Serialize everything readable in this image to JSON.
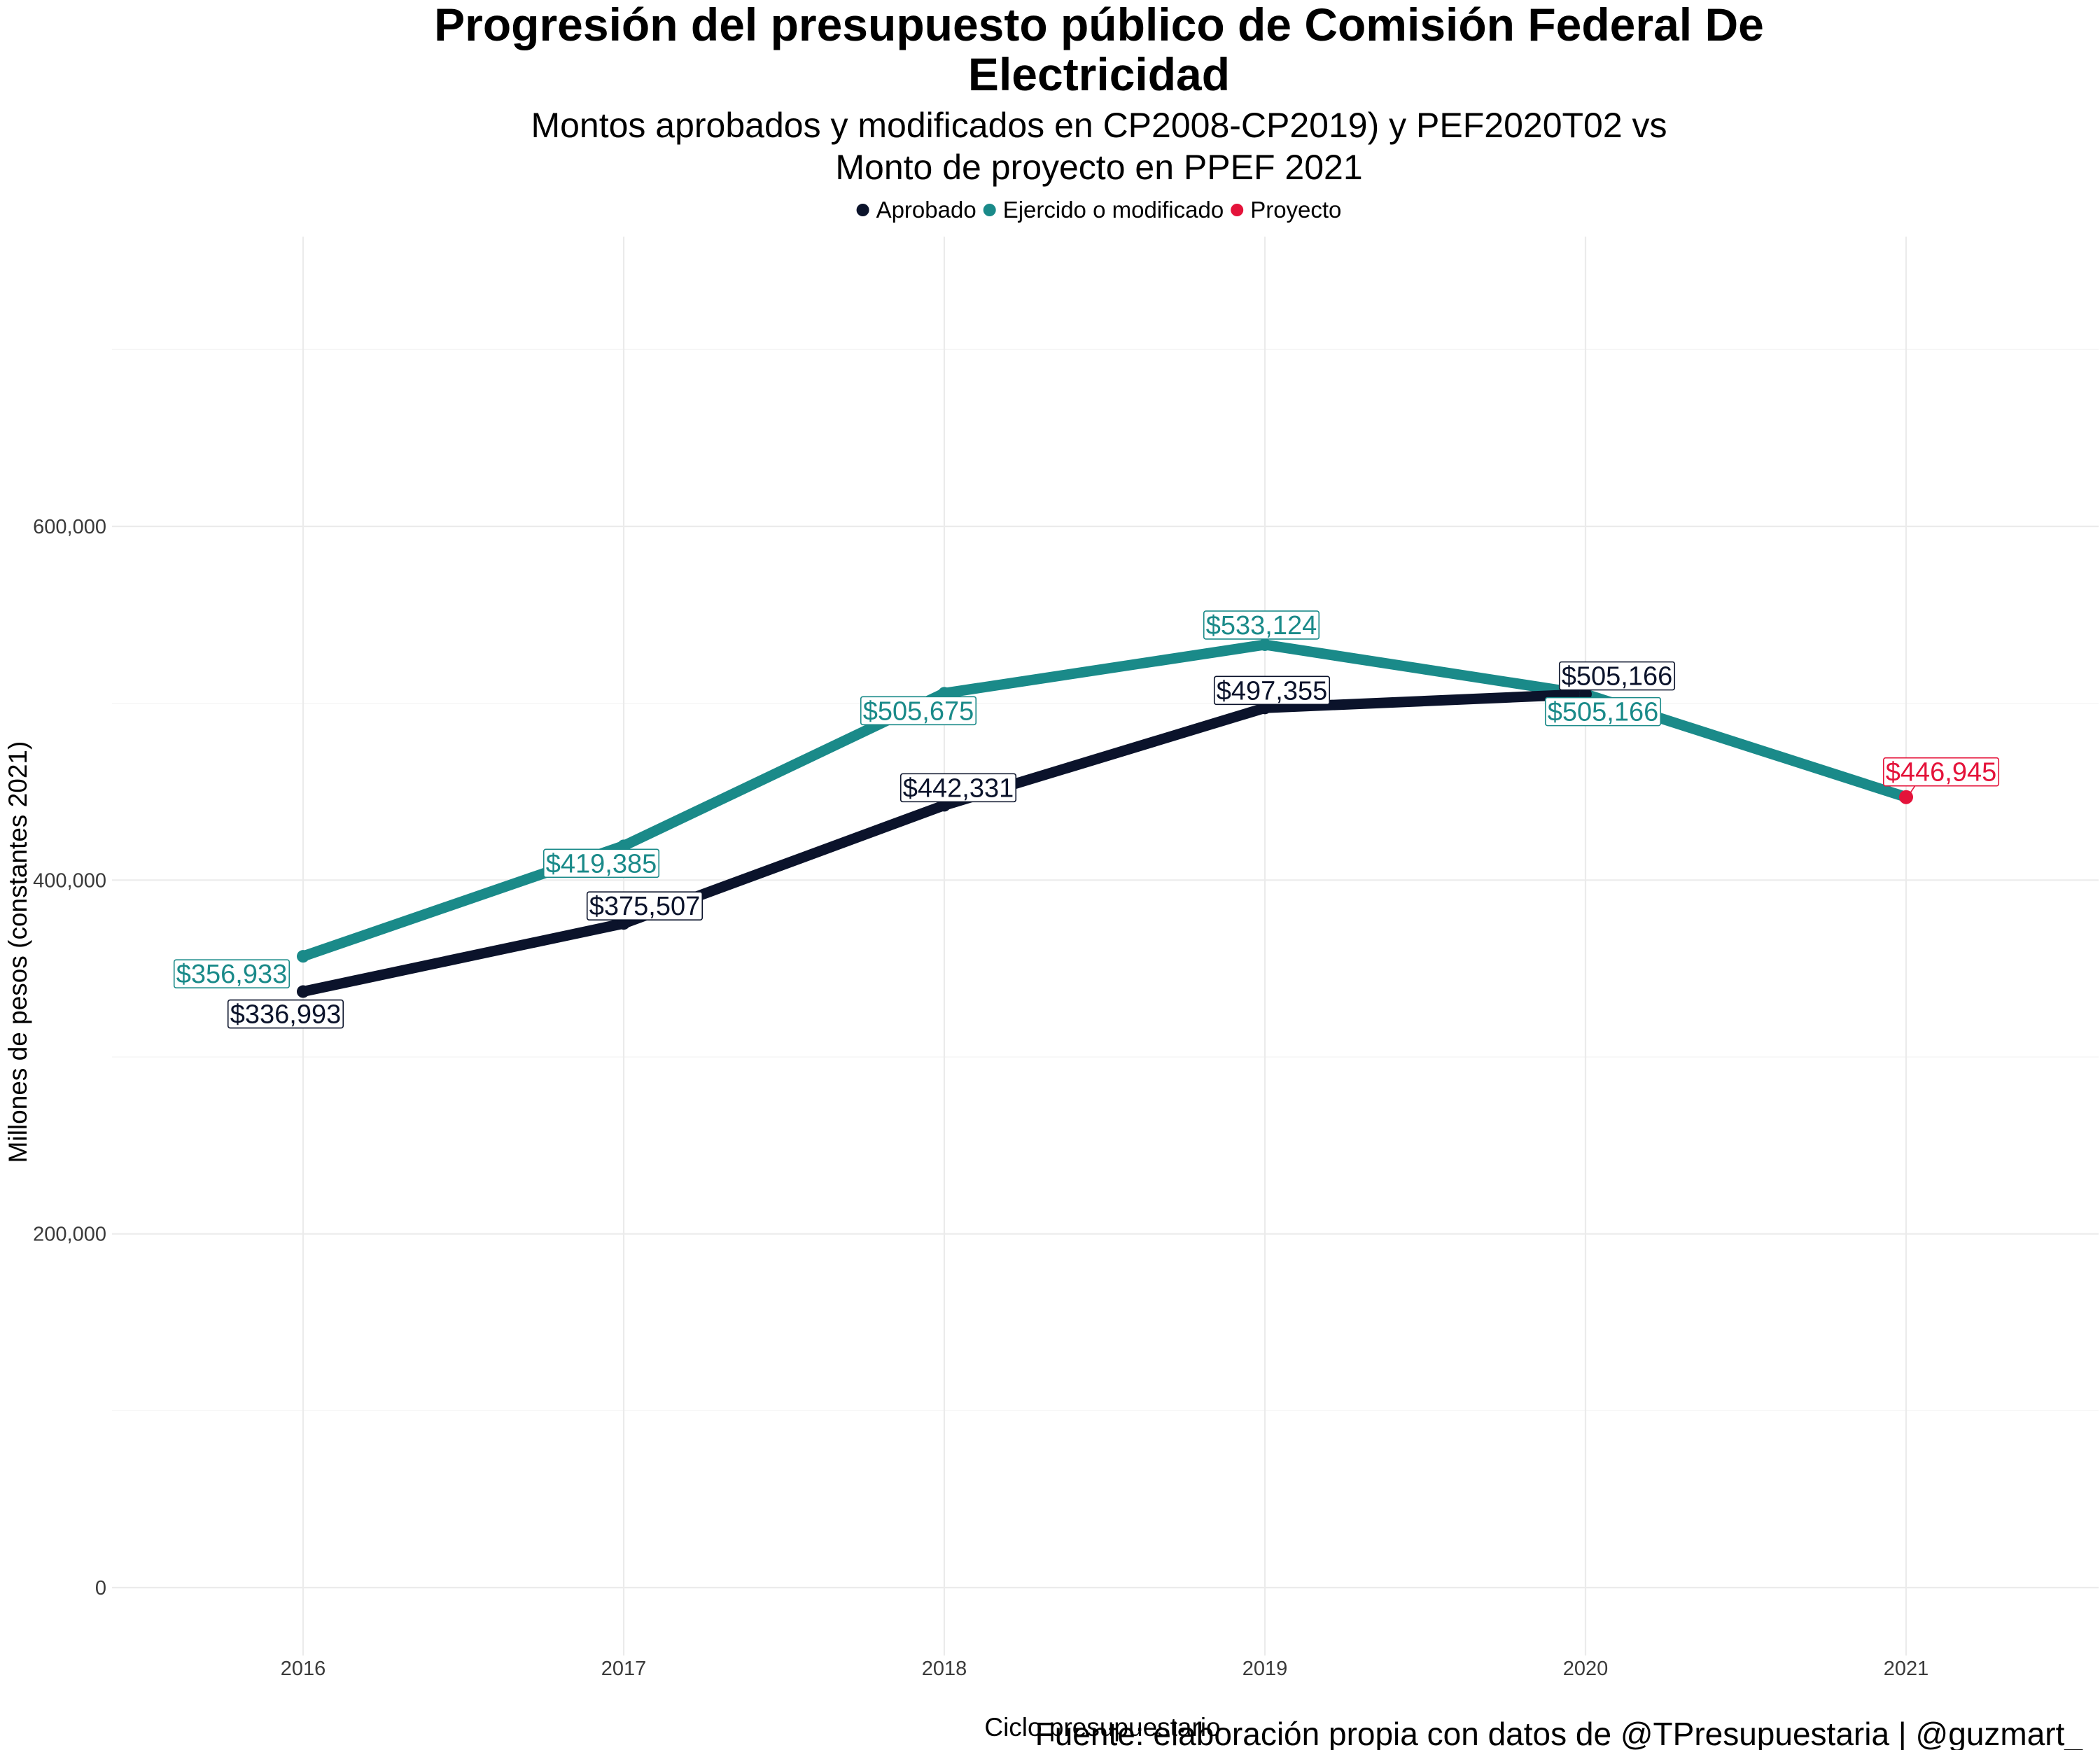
{
  "chart_data": {
    "type": "line",
    "title": "Progresión del presupuesto público de Comisión Federal De Electricidad",
    "title_lines": [
      "Progresión del presupuesto público de Comisión Federal De",
      "Electricidad"
    ],
    "subtitle_lines": [
      "Montos aprobados y modificados en CP2008-CP2019) y PEF2020T02 vs",
      "Monto de proyecto en PPEF 2021"
    ],
    "xlabel": "Ciclo presupuestario",
    "ylabel": "Millones de pesos (constantes 2021)",
    "caption": "Fuente: elaboración propia con datos de @TPresupuestaria | @guzmart_",
    "x": [
      2016,
      2017,
      2018,
      2019,
      2020,
      2021
    ],
    "x_tick_labels": [
      "2016",
      "2017",
      "2018",
      "2019",
      "2020",
      "2021"
    ],
    "ylim": [
      -40000,
      765000
    ],
    "y_ticks": [
      0,
      200000,
      400000,
      600000
    ],
    "y_tick_labels": [
      "0",
      "200,000",
      "400,000",
      "600,000"
    ],
    "y_minor_ticks": [
      100000,
      300000,
      500000,
      700000
    ],
    "grid": true,
    "legend_position": "top",
    "legend": [
      {
        "name": "Aprobado",
        "color": "#0b132b"
      },
      {
        "name": "Ejercido o modificado",
        "color": "#1a8a89"
      },
      {
        "name": "Proyecto",
        "color": "#e4133a"
      }
    ],
    "series": [
      {
        "name": "Aprobado",
        "color": "#0b132b",
        "x": [
          2016,
          2017,
          2018,
          2019,
          2020
        ],
        "values": [
          336993,
          375507,
          442331,
          497355,
          505166
        ],
        "labels": [
          "$336,993",
          "$375,507",
          "$442,331",
          "$497,355",
          "$505,166"
        ]
      },
      {
        "name": "Ejercido o modificado",
        "color": "#1a8a89",
        "x": [
          2016,
          2017,
          2018,
          2019,
          2020,
          2021
        ],
        "values": [
          356933,
          419385,
          505675,
          533124,
          505166,
          446945
        ],
        "labels": [
          "$356,933",
          "$419,385",
          "$505,675",
          "$533,124",
          "$505,166",
          ""
        ]
      },
      {
        "name": "Proyecto",
        "color": "#e4133a",
        "x": [
          2021
        ],
        "values": [
          446945
        ],
        "labels": [
          "$446,945"
        ]
      }
    ]
  }
}
